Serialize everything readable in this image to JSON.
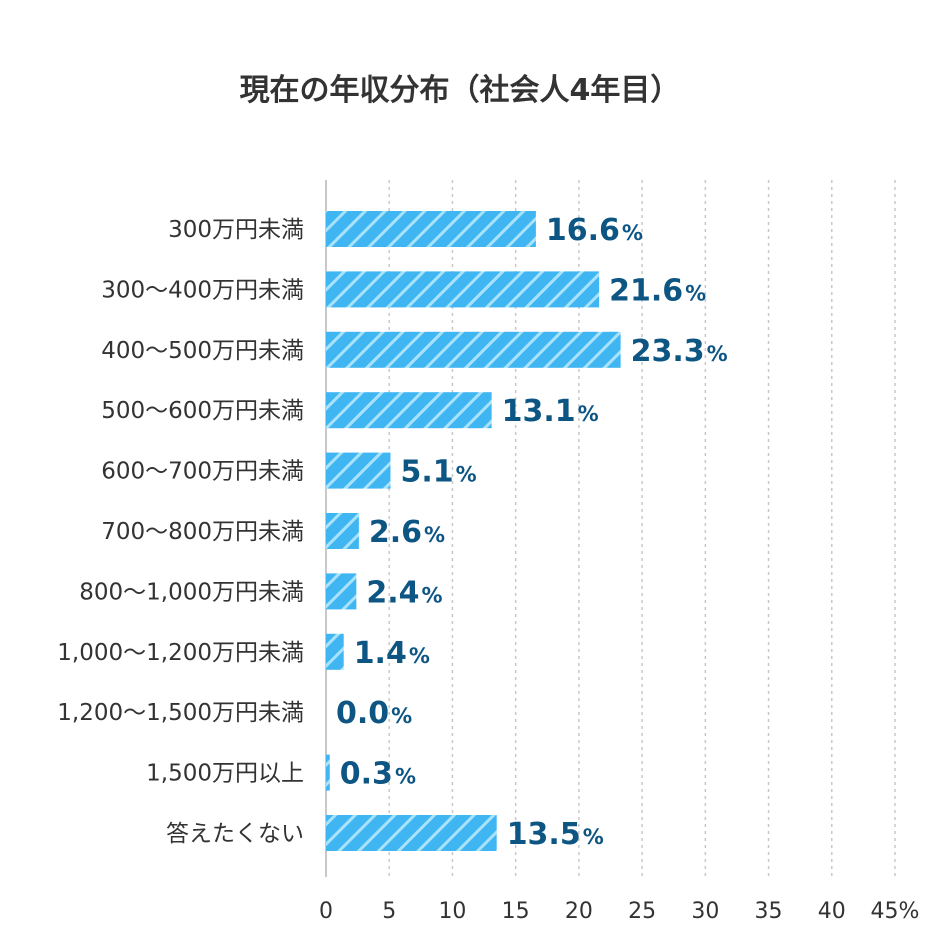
{
  "chart_data": {
    "type": "bar",
    "orientation": "horizontal",
    "title": "現在の年収分布（社会人4年目）",
    "categories": [
      "300万円未満",
      "300〜400万円未満",
      "400〜500万円未満",
      "500〜600万円未満",
      "600〜700万円未満",
      "700〜800万円未満",
      "800〜1,000万円未満",
      "1,000〜1,200万円未満",
      "1,200〜1,500万円未満",
      "1,500万円以上",
      "答えたくない"
    ],
    "values": [
      16.6,
      21.6,
      23.3,
      13.1,
      5.1,
      2.6,
      2.4,
      1.4,
      0.0,
      0.3,
      13.5
    ],
    "value_labels": [
      "16.6",
      "21.6",
      "23.3",
      "13.1",
      "5.1",
      "2.6",
      "2.4",
      "1.4",
      "0.0",
      "0.3",
      "13.5"
    ],
    "value_unit": "%",
    "xlim": [
      0,
      45
    ],
    "x_ticks": [
      "0",
      "5",
      "10",
      "15",
      "20",
      "25",
      "30",
      "35",
      "40",
      "45%"
    ],
    "grid": "vertical dashed",
    "legend": "none",
    "colors": {
      "bar": "#3fb6f2",
      "bar_stripe": "#a9e2fb",
      "value_label": "#0d5583",
      "grid": "#c8c8c8",
      "axis": "#c8c8c8",
      "text": "#333333"
    }
  }
}
